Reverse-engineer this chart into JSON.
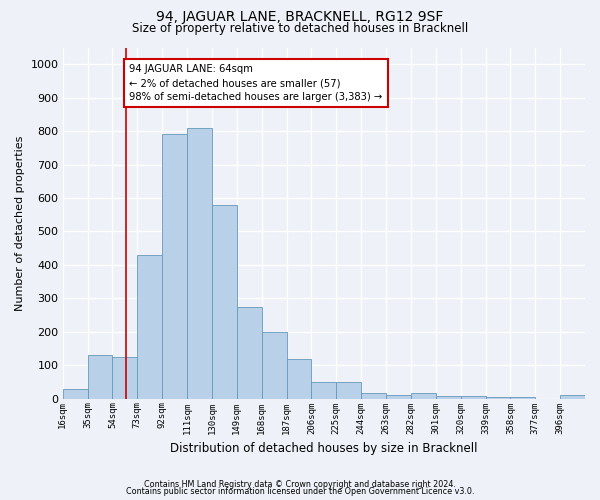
{
  "title": "94, JAGUAR LANE, BRACKNELL, RG12 9SF",
  "subtitle": "Size of property relative to detached houses in Bracknell",
  "xlabel": "Distribution of detached houses by size in Bracknell",
  "ylabel": "Number of detached properties",
  "bins": [
    "16sqm",
    "35sqm",
    "54sqm",
    "73sqm",
    "92sqm",
    "111sqm",
    "130sqm",
    "149sqm",
    "168sqm",
    "187sqm",
    "206sqm",
    "225sqm",
    "244sqm",
    "263sqm",
    "282sqm",
    "301sqm",
    "320sqm",
    "339sqm",
    "358sqm",
    "377sqm",
    "396sqm"
  ],
  "bin_left_edges": [
    16,
    35,
    54,
    73,
    92,
    111,
    130,
    149,
    168,
    187,
    206,
    225,
    244,
    263,
    282,
    301,
    320,
    339,
    358,
    377,
    396
  ],
  "bar_heights": [
    30,
    130,
    125,
    430,
    790,
    810,
    580,
    275,
    200,
    120,
    50,
    50,
    18,
    12,
    18,
    8,
    8,
    5,
    4,
    0,
    12
  ],
  "bar_color": "#b8d0e8",
  "bar_edge_color": "#6699bb",
  "property_line_x": 64,
  "property_line_color": "#cc0000",
  "annotation_line1": "94 JAGUAR LANE: 64sqm",
  "annotation_line2": "← 2% of detached houses are smaller (57)",
  "annotation_line3": "98% of semi-detached houses are larger (3,383) →",
  "annotation_box_facecolor": "#ffffff",
  "annotation_box_edgecolor": "#cc0000",
  "ylim": [
    0,
    1050
  ],
  "yticks": [
    0,
    100,
    200,
    300,
    400,
    500,
    600,
    700,
    800,
    900,
    1000
  ],
  "bg_color": "#eef2f8",
  "grid_color": "#ffffff",
  "footer_line1": "Contains HM Land Registry data © Crown copyright and database right 2024.",
  "footer_line2": "Contains public sector information licensed under the Open Government Licence v3.0."
}
